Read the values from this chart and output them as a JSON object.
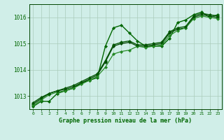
{
  "title": "Graphe pression niveau de la mer (hPa)",
  "xlabel": "Graphe pression niveau de la mer (hPa)",
  "background_color": "#d0eee8",
  "grid_color": "#aaccbb",
  "line_color_main": "#006600",
  "line_color_dark": "#004400",
  "line_color_mid": "#228822",
  "x_hours": [
    0,
    1,
    2,
    3,
    4,
    5,
    6,
    7,
    8,
    9,
    10,
    11,
    12,
    13,
    14,
    15,
    16,
    17,
    18,
    19,
    20,
    21,
    22,
    23
  ],
  "ylim": [
    1012.5,
    1016.5
  ],
  "yticks": [
    1013,
    1014,
    1015,
    1016
  ],
  "series": {
    "line1": [
      1012.6,
      1012.8,
      1012.8,
      1013.1,
      1013.2,
      1013.3,
      1013.5,
      1013.6,
      1013.7,
      1014.9,
      1015.6,
      1015.7,
      1015.4,
      1015.1,
      1014.9,
      1014.9,
      1014.9,
      1015.2,
      1015.8,
      1015.9,
      1016.1,
      1016.2,
      1016.0,
      1016.1
    ],
    "line2": [
      1012.7,
      1012.9,
      1013.1,
      1013.2,
      1013.25,
      1013.35,
      1013.5,
      1013.65,
      1013.8,
      1014.3,
      1014.9,
      1015.0,
      1015.05,
      1014.9,
      1014.9,
      1014.95,
      1015.0,
      1015.4,
      1015.55,
      1015.6,
      1016.0,
      1016.1,
      1016.05,
      1016.0
    ],
    "line3": [
      1012.65,
      1012.85,
      1013.05,
      1013.15,
      1013.2,
      1013.3,
      1013.45,
      1013.6,
      1013.75,
      1014.1,
      1014.6,
      1014.7,
      1014.75,
      1014.9,
      1014.85,
      1014.9,
      1014.95,
      1015.3,
      1015.5,
      1015.6,
      1015.95,
      1016.05,
      1016.0,
      1015.95
    ],
    "line4": [
      1012.75,
      1012.95,
      1013.1,
      1013.2,
      1013.3,
      1013.4,
      1013.55,
      1013.7,
      1013.85,
      1014.35,
      1014.95,
      1015.05,
      1015.1,
      1014.95,
      1014.95,
      1015.0,
      1015.05,
      1015.45,
      1015.6,
      1015.65,
      1016.05,
      1016.15,
      1016.1,
      1016.05
    ]
  }
}
